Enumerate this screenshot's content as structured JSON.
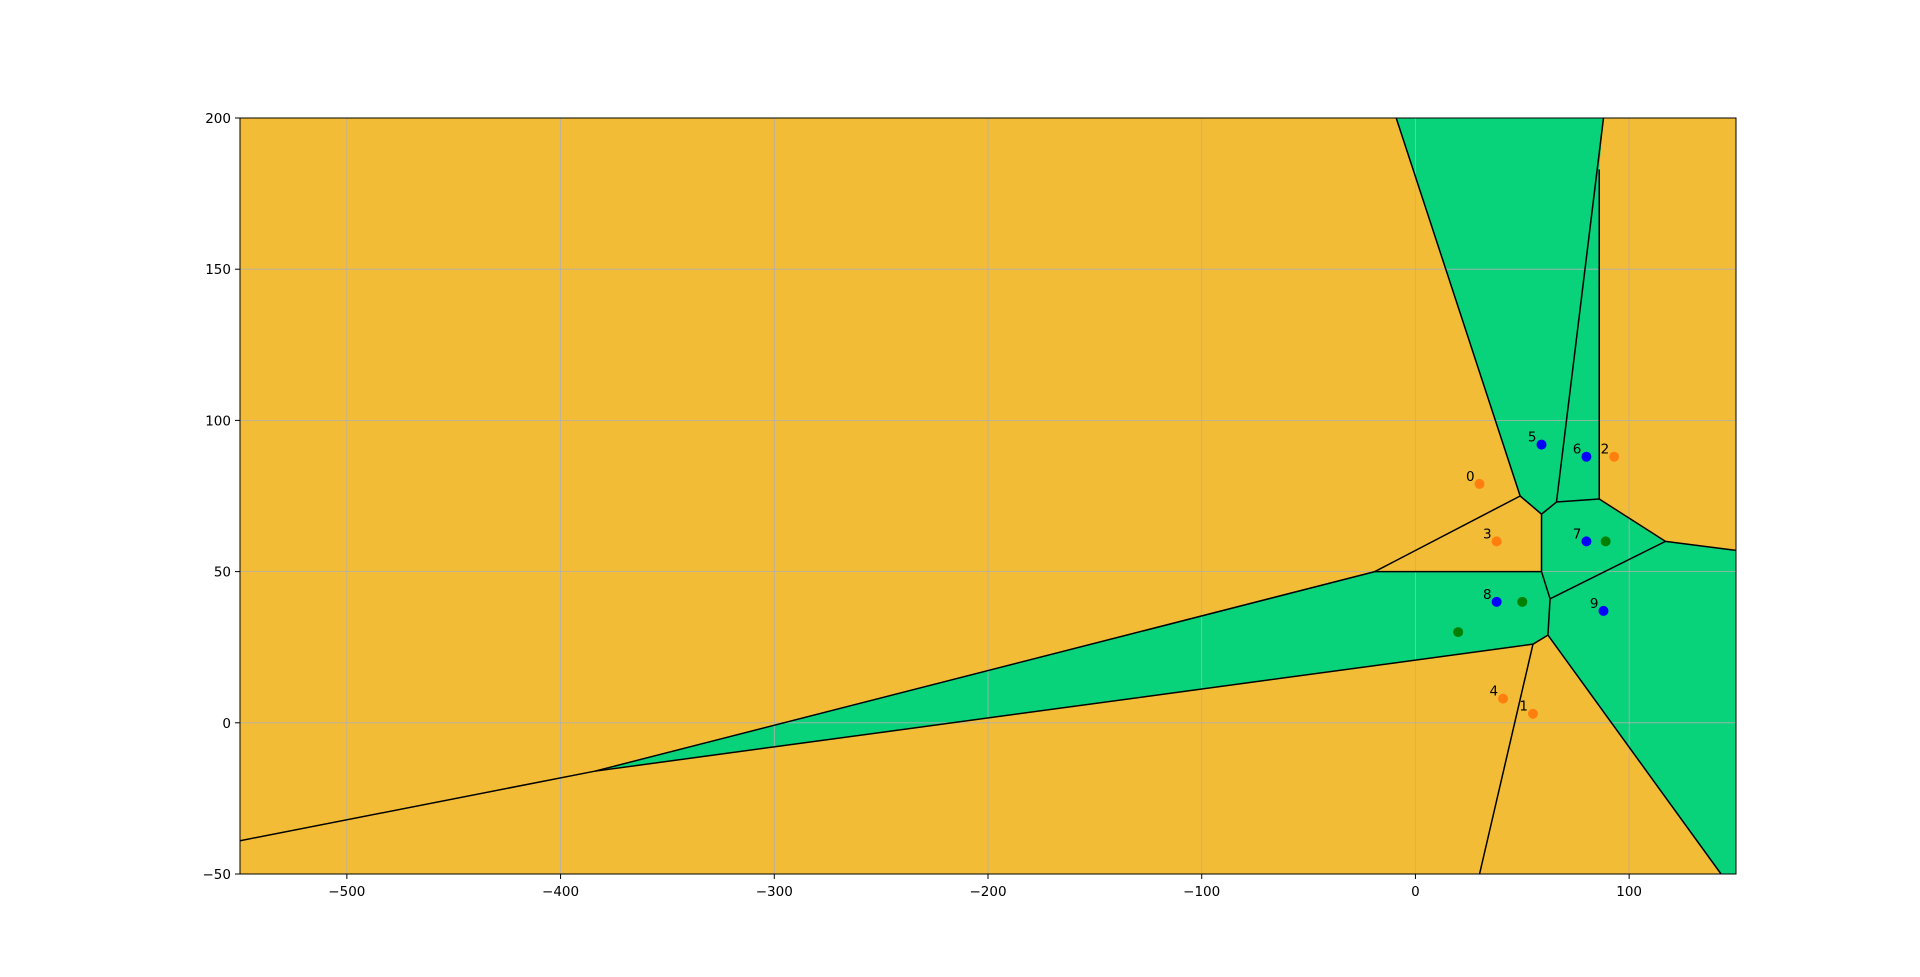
{
  "chart_data": {
    "type": "scatter",
    "title": "",
    "xlabel": "",
    "ylabel": "",
    "xlim": [
      -550,
      150
    ],
    "ylim": [
      -50,
      200
    ],
    "grid": true,
    "xticks": [
      -500,
      -400,
      -300,
      -200,
      -100,
      0,
      100
    ],
    "yticks": [
      -50,
      0,
      50,
      100,
      150,
      200
    ],
    "xtick_labels": [
      "−500",
      "−400",
      "−300",
      "−200",
      "−100",
      "0",
      "100"
    ],
    "ytick_labels": [
      "−50",
      "0",
      "50",
      "100",
      "150",
      "200"
    ],
    "colors": {
      "background_region": "#f3bc37",
      "highlight_region": "#08d27a",
      "orange_point": "#ff7f0e",
      "blue_point": "#0000ff",
      "green_point": "#008000",
      "edge": "#000000",
      "grid": "#b0b0b0"
    },
    "regions": [
      {
        "color_key": "highlight_region",
        "vertices": [
          [
            -9,
            200
          ],
          [
            49,
            75
          ],
          [
            59,
            69
          ],
          [
            59,
            50
          ],
          [
            -19,
            50
          ],
          [
            -384,
            -16
          ],
          [
            -550,
            -39
          ],
          [
            -550,
            200
          ]
        ],
        "kind": "orange"
      },
      {
        "color_key": "highlight_region",
        "vertices": [
          [
            -9,
            200
          ],
          [
            88,
            200
          ],
          [
            86,
            183
          ],
          [
            86,
            74
          ],
          [
            66,
            73
          ],
          [
            59,
            69
          ],
          [
            49,
            75
          ]
        ],
        "kind": "green"
      },
      {
        "color_key": "highlight_region",
        "vertices": [
          [
            86,
            183
          ],
          [
            88,
            200
          ],
          [
            150,
            200
          ],
          [
            150,
            57
          ],
          [
            117,
            60
          ],
          [
            86,
            74
          ]
        ],
        "kind": "orange"
      },
      {
        "color_key": "highlight_region",
        "vertices": [
          [
            59,
            69
          ],
          [
            66,
            73
          ],
          [
            86,
            74
          ],
          [
            117,
            60
          ],
          [
            63,
            41
          ],
          [
            59,
            50
          ]
        ],
        "kind": "green"
      },
      {
        "color_key": "highlight_region",
        "vertices": [
          [
            -19,
            50
          ],
          [
            59,
            50
          ],
          [
            63,
            41
          ],
          [
            62,
            29
          ],
          [
            55,
            26
          ],
          [
            -384,
            -16
          ]
        ],
        "kind": "green"
      },
      {
        "color_key": "highlight_region",
        "vertices": [
          [
            62,
            29
          ],
          [
            63,
            41
          ],
          [
            117,
            60
          ],
          [
            150,
            57
          ],
          [
            150,
            -50
          ],
          [
            143,
            -50
          ]
        ],
        "kind": "green"
      },
      {
        "color_key": "highlight_region",
        "vertices": [
          [
            -384,
            -16
          ],
          [
            55,
            26
          ],
          [
            30,
            -50
          ],
          [
            -550,
            -50
          ],
          [
            -550,
            -39
          ]
        ],
        "kind": "orange"
      },
      {
        "color_key": "highlight_region",
        "vertices": [
          [
            55,
            26
          ],
          [
            62,
            29
          ],
          [
            143,
            -50
          ],
          [
            30,
            -50
          ]
        ],
        "kind": "orange"
      }
    ],
    "edges": [
      [
        [
          -9,
          200
        ],
        [
          49,
          75
        ]
      ],
      [
        [
          49,
          75
        ],
        [
          59,
          69
        ]
      ],
      [
        [
          59,
          69
        ],
        [
          66,
          73
        ]
      ],
      [
        [
          66,
          73
        ],
        [
          88,
          200
        ]
      ],
      [
        [
          66,
          73
        ],
        [
          86,
          74
        ]
      ],
      [
        [
          86,
          74
        ],
        [
          86,
          183
        ]
      ],
      [
        [
          86,
          74
        ],
        [
          117,
          60
        ]
      ],
      [
        [
          117,
          60
        ],
        [
          150,
          57
        ]
      ],
      [
        [
          117,
          60
        ],
        [
          63,
          41
        ]
      ],
      [
        [
          49,
          75
        ],
        [
          -19,
          50
        ]
      ],
      [
        [
          59,
          69
        ],
        [
          59,
          50
        ]
      ],
      [
        [
          -19,
          50
        ],
        [
          59,
          50
        ]
      ],
      [
        [
          59,
          50
        ],
        [
          63,
          41
        ]
      ],
      [
        [
          63,
          41
        ],
        [
          62,
          29
        ]
      ],
      [
        [
          62,
          29
        ],
        [
          55,
          26
        ]
      ],
      [
        [
          62,
          29
        ],
        [
          143,
          -50
        ]
      ],
      [
        [
          55,
          26
        ],
        [
          30,
          -50
        ]
      ],
      [
        [
          55,
          26
        ],
        [
          -384,
          -16
        ]
      ],
      [
        [
          -19,
          50
        ],
        [
          -384,
          -16
        ]
      ],
      [
        [
          -384,
          -16
        ],
        [
          -550,
          -39
        ]
      ]
    ],
    "points": [
      {
        "label": "0",
        "x": 30,
        "y": 79,
        "color_key": "orange_point"
      },
      {
        "label": "1",
        "x": 55,
        "y": 3,
        "color_key": "orange_point"
      },
      {
        "label": "2",
        "x": 93,
        "y": 88,
        "color_key": "orange_point"
      },
      {
        "label": "3",
        "x": 38,
        "y": 60,
        "color_key": "orange_point"
      },
      {
        "label": "4",
        "x": 41,
        "y": 8,
        "color_key": "orange_point"
      },
      {
        "label": "5",
        "x": 59,
        "y": 92,
        "color_key": "blue_point"
      },
      {
        "label": "6",
        "x": 80,
        "y": 88,
        "color_key": "blue_point"
      },
      {
        "label": "7",
        "x": 80,
        "y": 60,
        "color_key": "blue_point"
      },
      {
        "label": "8",
        "x": 38,
        "y": 40,
        "color_key": "blue_point"
      },
      {
        "label": "9",
        "x": 88,
        "y": 37,
        "color_key": "blue_point"
      },
      {
        "label": "",
        "x": 89,
        "y": 60,
        "color_key": "green_point"
      },
      {
        "label": "",
        "x": 50,
        "y": 40,
        "color_key": "green_point"
      },
      {
        "label": "",
        "x": 20,
        "y": 30,
        "color_key": "green_point"
      }
    ]
  }
}
